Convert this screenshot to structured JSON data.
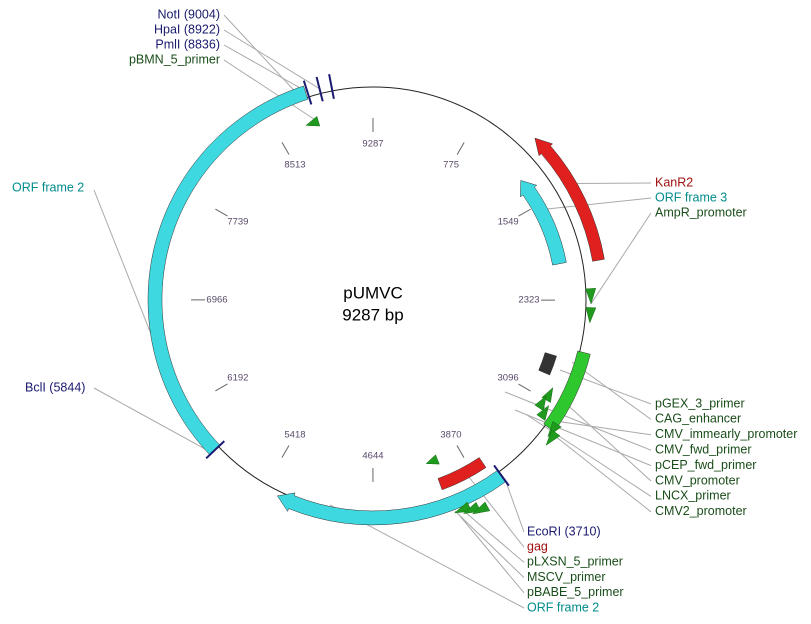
{
  "title": "pUMVC",
  "subtitle": "9287 bp",
  "ticks": [
    9287,
    775,
    1549,
    2323,
    3096,
    3870,
    4644,
    5418,
    6192,
    6966,
    7739,
    8513
  ],
  "top_left_labels": [
    "NotI (9004)",
    "HpaI (8922)",
    "PmlI (8836)",
    "pBMN_5_primer"
  ],
  "left_labels": [
    "ORF frame 2",
    "BclI (5844)"
  ],
  "top_right_labels": [
    "KanR2",
    "ORF frame 3",
    "AmpR_promoter"
  ],
  "bottom_right_labels": [
    "pGEX_3_primer",
    "CAG_enhancer",
    "CMV_immearly_promoter",
    "CMV_fwd_primer",
    "pCEP_fwd_primer",
    "CMV_promoter",
    "LNCX_primer",
    "CMV2_promoter"
  ],
  "bottom_labels": [
    "EcoRI (3710)",
    "gag",
    "pLXSN_5_primer",
    "MSCV_primer",
    "pBABE_5_primer",
    "ORF frame 2"
  ]
}
